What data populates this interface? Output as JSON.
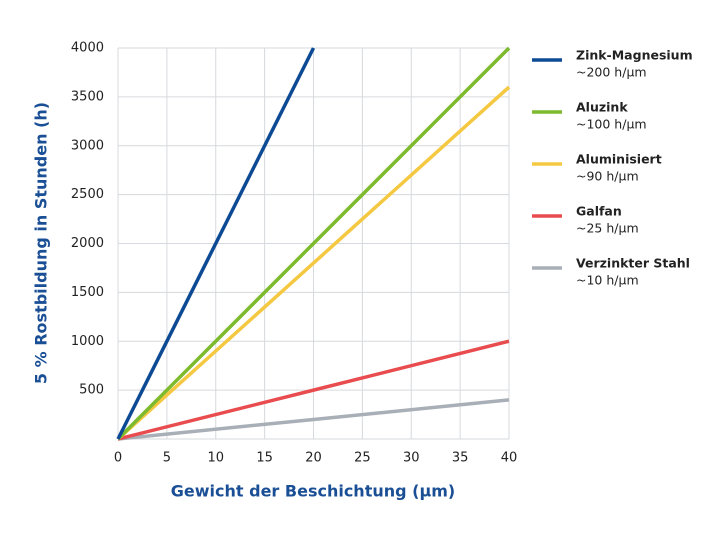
{
  "chart_data": {
    "type": "line",
    "xlabel": "Gewicht der Beschichtung (µm)",
    "ylabel": "5 % Rostbildung in Stunden (h)",
    "x": [
      0,
      20,
      40
    ],
    "series": [
      {
        "name": "Zink-Magnesium",
        "rate_label": "~200 h/µm",
        "color": "#0d4a94",
        "values": [
          0,
          4000,
          null
        ]
      },
      {
        "name": "Aluzink",
        "rate_label": "~100 h/µm",
        "color": "#7dba2e",
        "values": [
          0,
          2000,
          4000
        ]
      },
      {
        "name": "Aluminisiert",
        "rate_label": "~90 h/µm",
        "color": "#f5c842",
        "values": [
          0,
          1800,
          3600
        ]
      },
      {
        "name": "Galfan",
        "rate_label": "~25 h/µm",
        "color": "#e84c4f",
        "values": [
          0,
          500,
          1000
        ]
      },
      {
        "name": "Verzinkter Stahl",
        "rate_label": "~10 h/µm",
        "color": "#a9afb7",
        "values": [
          0,
          200,
          400
        ]
      }
    ],
    "xlim": [
      0,
      40
    ],
    "xticks": [
      0,
      5,
      10,
      15,
      20,
      25,
      30,
      35,
      40
    ],
    "ylim": [
      0,
      4000
    ],
    "yticks": [
      500,
      1000,
      1500,
      2000,
      2500,
      3000,
      3500,
      4000
    ],
    "grid": true,
    "legend": "right"
  }
}
